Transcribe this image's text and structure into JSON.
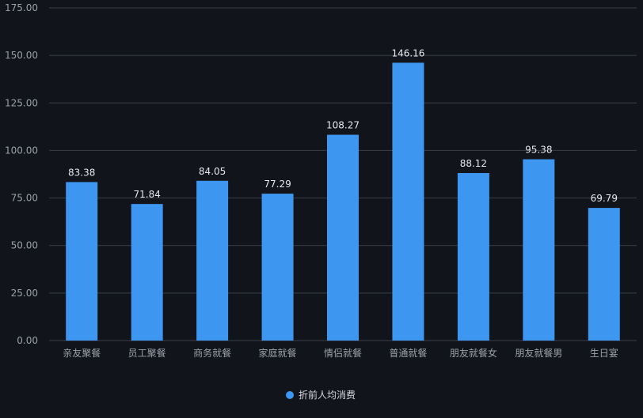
{
  "chart_data": {
    "type": "bar",
    "categories": [
      "亲友聚餐",
      "员工聚餐",
      "商务就餐",
      "家庭就餐",
      "情侣就餐",
      "普通就餐",
      "朋友就餐女",
      "朋友就餐男",
      "生日宴"
    ],
    "series": [
      {
        "name": "折前人均消费",
        "values": [
          83.38,
          71.84,
          84.05,
          77.29,
          108.27,
          146.16,
          88.12,
          95.38,
          69.79
        ],
        "labels": [
          "83.38",
          "71.84",
          "84.05",
          "77.29",
          "108.27",
          "146.16",
          "88.12",
          "95.38",
          "69.79"
        ]
      }
    ],
    "y_ticks": [
      0,
      25,
      50,
      75,
      100,
      125,
      150,
      175
    ],
    "y_tick_labels": [
      "0.00",
      "25.00",
      "50.00",
      "75.00",
      "100.00",
      "125.00",
      "150.00",
      "175.00"
    ],
    "ylim": [
      0,
      175
    ],
    "grid": true,
    "legend_position": "bottom-center",
    "colors": {
      "background": "#11141b",
      "bar": "#3d96f0",
      "grid": "#3a3e47",
      "axis_text": "#9aa0aa",
      "label_text": "#e6e8eb",
      "legend_marker": "#3d96f0"
    }
  }
}
